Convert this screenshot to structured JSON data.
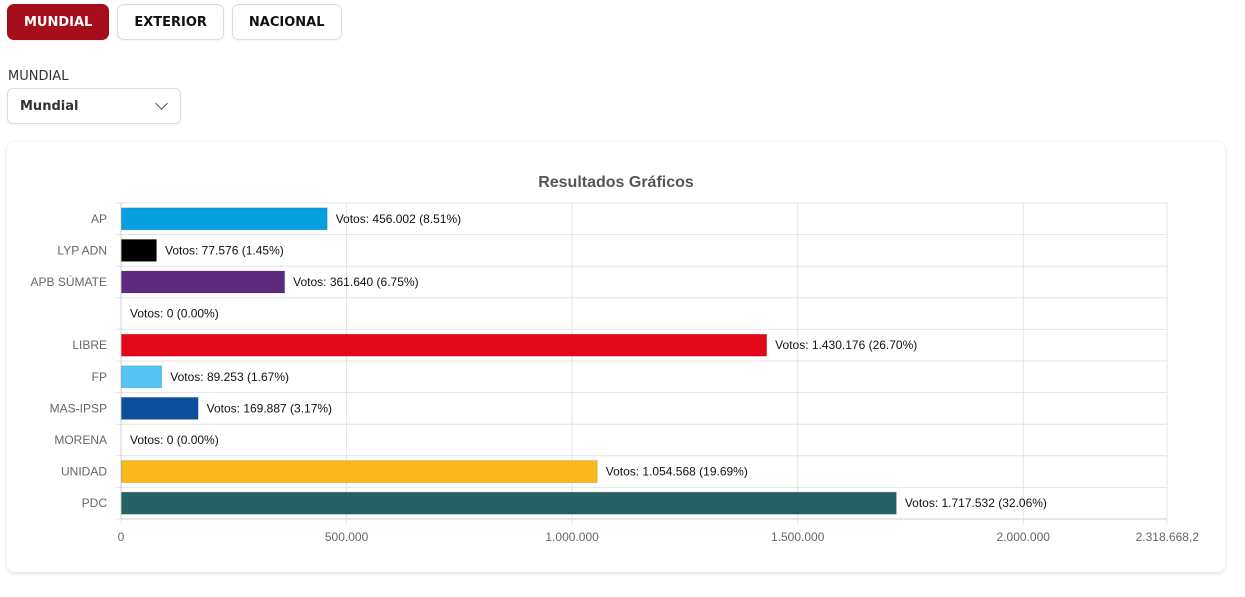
{
  "tabs": [
    {
      "label": "MUNDIAL",
      "active": true
    },
    {
      "label": "EXTERIOR",
      "active": false
    },
    {
      "label": "NACIONAL",
      "active": false
    }
  ],
  "filter": {
    "label": "MUNDIAL",
    "selected": "Mundial",
    "icon": "chevron-down-icon"
  },
  "chart_data": {
    "type": "bar",
    "orientation": "horizontal",
    "title": "Resultados Gráficos",
    "xlabel": "",
    "ylabel": "",
    "grid": true,
    "xlim": [
      0,
      2318668.2
    ],
    "xticks": [
      "0",
      "500.000",
      "1.000.000",
      "1.500.000",
      "2.000.000",
      "2.318.668,2"
    ],
    "xtick_values": [
      0,
      500000,
      1000000,
      1500000,
      2000000,
      2318668.2
    ],
    "bars": [
      {
        "category": "AP",
        "value": 456002,
        "label": "Votos: 456.002 (8.51%)",
        "color": "#059fe2"
      },
      {
        "category": "LYP ADN",
        "value": 77576,
        "label": "Votos: 77.576 (1.45%)",
        "color": "#000000"
      },
      {
        "category": "APB SÚMATE",
        "value": 361640,
        "label": "Votos: 361.640 (6.75%)",
        "color": "#5e2a7e"
      },
      {
        "category": "",
        "value": 0,
        "label": "Votos: 0 (0.00%)",
        "color": "#999999"
      },
      {
        "category": "LIBRE",
        "value": 1430176,
        "label": "Votos: 1.430.176 (26.70%)",
        "color": "#e30819"
      },
      {
        "category": "FP",
        "value": 89253,
        "label": "Votos: 89.253 (1.67%)",
        "color": "#54c5f2"
      },
      {
        "category": "MAS-IPSP",
        "value": 169887,
        "label": "Votos: 169.887 (3.17%)",
        "color": "#0b4f9e"
      },
      {
        "category": "MORENA",
        "value": 0,
        "label": "Votos: 0 (0.00%)",
        "color": "#999999"
      },
      {
        "category": "UNIDAD",
        "value": 1054568,
        "label": "Votos: 1.054.568 (19.69%)",
        "color": "#fbb81a"
      },
      {
        "category": "PDC",
        "value": 1717532,
        "label": "Votos: 1.717.532 (32.06%)",
        "color": "#266263"
      }
    ]
  }
}
